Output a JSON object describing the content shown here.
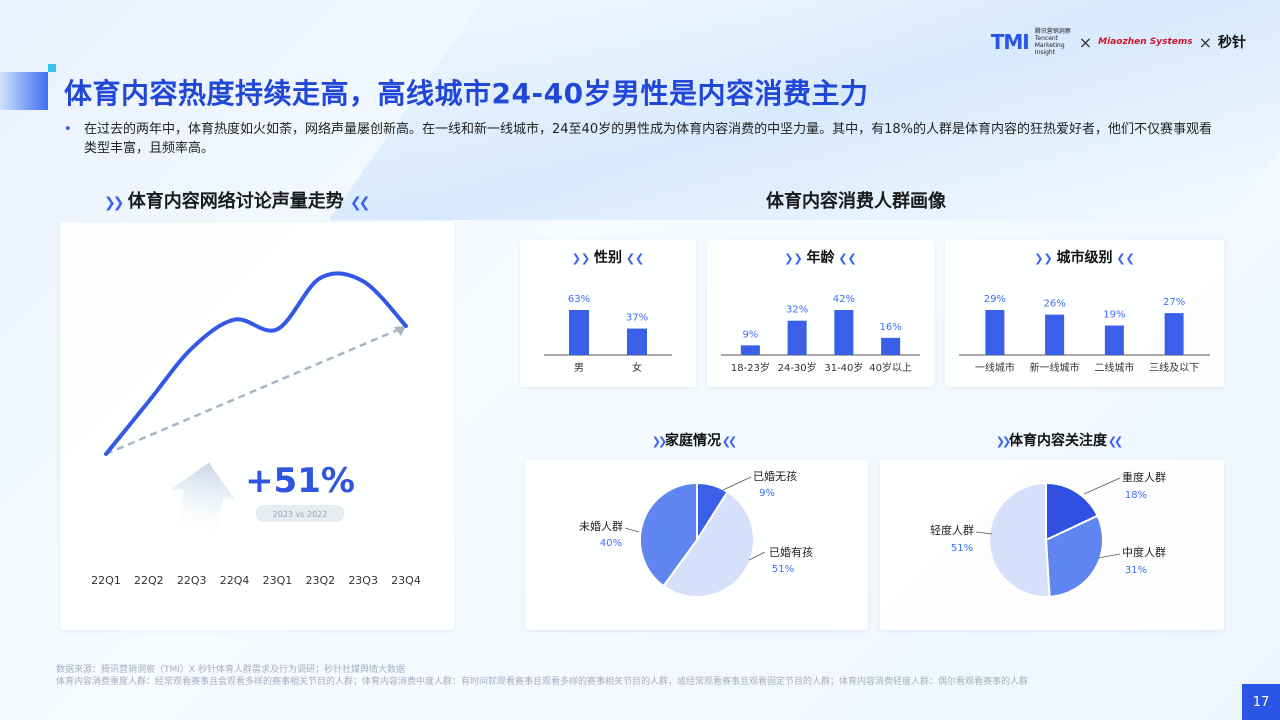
{
  "header": {
    "logos": {
      "tmi": "TMI",
      "tmi_sub": "腾讯营销洞察 Tencent Marketing Insight",
      "sep": "×",
      "mr": "Miaozhen Systems",
      "mz": "秒针"
    },
    "title": "体育内容热度持续走高，高线城市24-40岁男性是内容消费主力",
    "description": "在过去的两年中，体育热度如火如荼，网络声量屡创新高。在一线和新一线城市，24至40岁的男性成为体育内容消费的中坚力量。其中，有18%的人群是体育内容的狂热爱好者，他们不仅赛事观看类型丰富，且频率高。"
  },
  "trend": {
    "section_title": "体育内容网络讨论声量走势",
    "growth_label": "+51%",
    "growth_note": "2023 vs 2022"
  },
  "portrait": {
    "section_title": "体育内容消费人群画像"
  },
  "chart_data": [
    {
      "type": "line",
      "title": "体育内容网络讨论声量走势",
      "categories": [
        "22Q1",
        "22Q2",
        "22Q3",
        "22Q4",
        "23Q1",
        "23Q2",
        "23Q3",
        "23Q4"
      ],
      "values": [
        0.0,
        0.33,
        0.66,
        0.84,
        0.78,
        1.1,
        1.08,
        0.8
      ],
      "trend_line": [
        0.0,
        0.8
      ]
    },
    {
      "type": "bar",
      "title": "性别",
      "categories": [
        "男",
        "女"
      ],
      "values": [
        63,
        37
      ],
      "labels": [
        "63%",
        "37%"
      ]
    },
    {
      "type": "bar",
      "title": "年龄",
      "categories": [
        "18-23岁",
        "24-30岁",
        "31-40岁",
        "40岁以上"
      ],
      "values": [
        9,
        32,
        42,
        16
      ],
      "labels": [
        "9%",
        "32%",
        "42%",
        "16%"
      ]
    },
    {
      "type": "bar",
      "title": "城市级别",
      "categories": [
        "一线城市",
        "新一线城市",
        "二线城市",
        "三线及以下"
      ],
      "values": [
        29,
        26,
        19,
        27
      ],
      "labels": [
        "29%",
        "26%",
        "19%",
        "27%"
      ]
    },
    {
      "type": "pie",
      "title": "家庭情况",
      "slices": [
        {
          "name": "已婚无孩",
          "value": 9,
          "label": "9%",
          "color": "#3a5fe8"
        },
        {
          "name": "已婚有孩",
          "value": 51,
          "label": "51%",
          "color": "#d6e0fb"
        },
        {
          "name": "未婚人群",
          "value": 40,
          "label": "40%",
          "color": "#5f85f0"
        }
      ]
    },
    {
      "type": "pie",
      "title": "体育内容关注度",
      "slices": [
        {
          "name": "重度人群",
          "value": 18,
          "label": "18%",
          "color": "#2f50e0"
        },
        {
          "name": "中度人群",
          "value": 31,
          "label": "31%",
          "color": "#5f85f0"
        },
        {
          "name": "轻度人群",
          "value": 51,
          "label": "51%",
          "color": "#d6e0fb"
        }
      ]
    }
  ],
  "footer": {
    "source": "数据来源：腾讯营销洞察（TMI）X 秒针体育人群需求及行为调研；秒针社媒舆情大数据",
    "definitions": "体育内容消费重度人群：经常观看赛事且会观看多样的赛事相关节目的人群；体育内容消费中度人群：有时间就观看赛事且观看多样的赛事相关节目的人群，或经常观看赛事且观看固定节目的人群；体育内容消费轻度人群：偶尔看观看赛事的人群",
    "page": "17"
  },
  "colors": {
    "accent": "#2a55e5",
    "bar": "#3a5fe8"
  }
}
